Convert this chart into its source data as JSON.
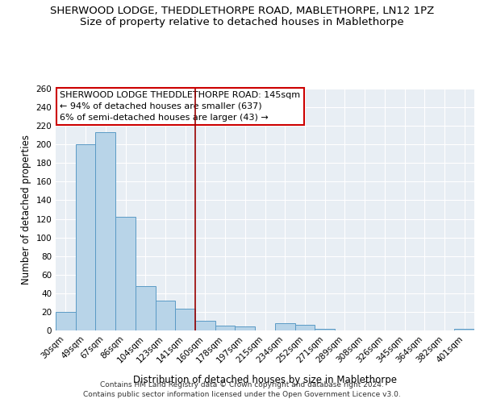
{
  "title": "SHERWOOD LODGE, THEDDLETHORPE ROAD, MABLETHORPE, LN12 1PZ",
  "subtitle": "Size of property relative to detached houses in Mablethorpe",
  "xlabel": "Distribution of detached houses by size in Mablethorpe",
  "ylabel": "Number of detached properties",
  "bin_labels": [
    "30sqm",
    "49sqm",
    "67sqm",
    "86sqm",
    "104sqm",
    "123sqm",
    "141sqm",
    "160sqm",
    "178sqm",
    "197sqm",
    "215sqm",
    "234sqm",
    "252sqm",
    "271sqm",
    "289sqm",
    "308sqm",
    "326sqm",
    "345sqm",
    "364sqm",
    "382sqm",
    "401sqm"
  ],
  "bar_heights": [
    20,
    200,
    213,
    122,
    48,
    32,
    23,
    10,
    5,
    4,
    0,
    8,
    6,
    2,
    0,
    0,
    0,
    0,
    0,
    0,
    2
  ],
  "bar_color": "#b8d4e8",
  "bar_edge_color": "#5a9ac5",
  "vline_index": 6,
  "vline_color": "#990000",
  "ylim": [
    0,
    260
  ],
  "yticks": [
    0,
    20,
    40,
    60,
    80,
    100,
    120,
    140,
    160,
    180,
    200,
    220,
    240,
    260
  ],
  "annotation_title": "SHERWOOD LODGE THEDDLETHORPE ROAD: 145sqm",
  "annotation_line1": "← 94% of detached houses are smaller (637)",
  "annotation_line2": "6% of semi-detached houses are larger (43) →",
  "annotation_box_color": "#ffffff",
  "annotation_box_edge": "#cc0000",
  "bg_color": "#e8eef4",
  "footer1": "Contains HM Land Registry data © Crown copyright and database right 2024.",
  "footer2": "Contains public sector information licensed under the Open Government Licence v3.0.",
  "title_fontsize": 9.5,
  "subtitle_fontsize": 9.5,
  "axis_label_fontsize": 8.5,
  "tick_fontsize": 7.5,
  "annotation_fontsize": 8,
  "footer_fontsize": 6.5
}
